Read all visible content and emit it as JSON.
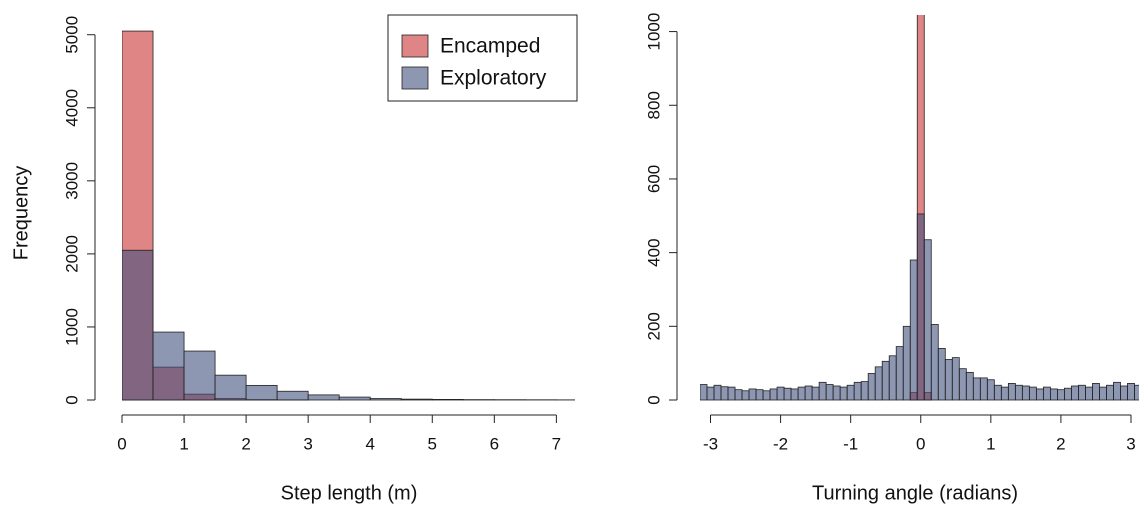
{
  "chart_data": [
    {
      "type": "histogram",
      "xlabel": "Step length (m)",
      "ylabel": "Frequency",
      "bins": [
        0,
        0.5,
        1,
        1.5,
        2,
        2.5,
        3,
        3.5,
        4,
        4.5,
        5,
        5.5,
        6,
        6.5,
        7,
        7.5
      ],
      "series": [
        {
          "name": "Encamped",
          "color": "#cc3333",
          "values": [
            5050,
            450,
            80,
            20,
            5,
            2,
            0,
            0,
            0,
            0,
            0,
            0,
            0,
            0,
            0
          ]
        },
        {
          "name": "Exploratory",
          "color": "#42527e",
          "values": [
            2050,
            930,
            670,
            340,
            200,
            120,
            70,
            40,
            20,
            12,
            8,
            5,
            4,
            3,
            2
          ]
        }
      ],
      "xlim": [
        0,
        7.3
      ],
      "ylim": [
        0,
        5270
      ],
      "xticks": [
        0,
        1,
        2,
        3,
        4,
        5,
        6,
        7
      ],
      "yticks": [
        0,
        1000,
        2000,
        3000,
        4000,
        5000
      ],
      "legend": "top-right"
    },
    {
      "type": "histogram",
      "xlabel": "Turning angle (radians)",
      "bins": [
        -3.15,
        -3.05,
        -2.95,
        -2.85,
        -2.75,
        -2.65,
        -2.55,
        -2.45,
        -2.35,
        -2.25,
        -2.15,
        -2.05,
        -1.95,
        -1.85,
        -1.75,
        -1.65,
        -1.55,
        -1.45,
        -1.35,
        -1.25,
        -1.15,
        -1.05,
        -0.95,
        -0.85,
        -0.75,
        -0.65,
        -0.55,
        -0.45,
        -0.35,
        -0.25,
        -0.15,
        -0.05,
        0.05,
        0.15,
        0.25,
        0.35,
        0.45,
        0.55,
        0.65,
        0.75,
        0.85,
        0.95,
        1.05,
        1.15,
        1.25,
        1.35,
        1.45,
        1.55,
        1.65,
        1.75,
        1.85,
        1.95,
        2.05,
        2.15,
        2.25,
        2.35,
        2.45,
        2.55,
        2.65,
        2.75,
        2.85,
        2.95,
        3.05,
        3.15
      ],
      "series": [
        {
          "color": "#cc3333",
          "values": [
            0,
            0,
            0,
            0,
            0,
            0,
            0,
            0,
            0,
            0,
            0,
            0,
            0,
            0,
            0,
            0,
            0,
            0,
            0,
            0,
            0,
            0,
            0,
            0,
            0,
            0,
            0,
            0,
            0,
            0,
            20,
            1100,
            20,
            0,
            0,
            0,
            0,
            0,
            0,
            0,
            0,
            0,
            0,
            0,
            0,
            0,
            0,
            0,
            0,
            0,
            0,
            0,
            0,
            0,
            0,
            0,
            0,
            0,
            0,
            0,
            0,
            0,
            0
          ]
        },
        {
          "color": "#42527e",
          "values": [
            42,
            35,
            40,
            36,
            35,
            28,
            25,
            30,
            28,
            25,
            30,
            35,
            32,
            30,
            35,
            38,
            35,
            48,
            42,
            38,
            35,
            40,
            48,
            50,
            72,
            90,
            105,
            120,
            145,
            200,
            380,
            505,
            435,
            205,
            140,
            110,
            115,
            85,
            75,
            60,
            60,
            55,
            40,
            35,
            45,
            40,
            38,
            35,
            30,
            35,
            30,
            28,
            32,
            38,
            40,
            35,
            45,
            35,
            40,
            48,
            38,
            45,
            40
          ]
        }
      ],
      "xlim": [
        -3.15,
        3.1
      ],
      "ylim": [
        0,
        1045
      ],
      "xticks": [
        -3,
        -2,
        -1,
        0,
        1,
        2,
        3
      ],
      "yticks": [
        0,
        200,
        400,
        600,
        800,
        1000
      ]
    }
  ]
}
